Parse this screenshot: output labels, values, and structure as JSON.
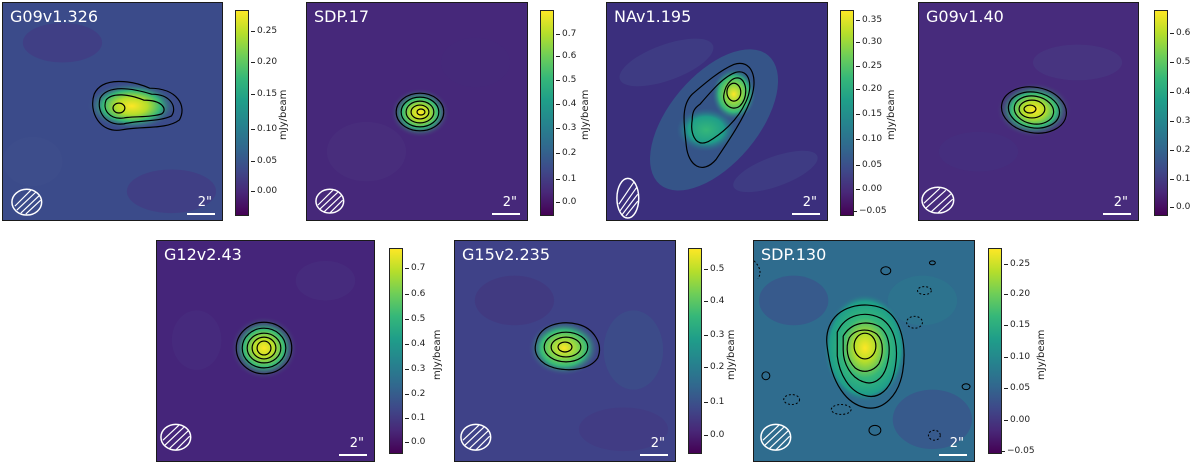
{
  "unit_label": "mJy/beam",
  "scale_bar_label": "2\"",
  "colormap": "viridis",
  "contour_color": "#000000",
  "panels": [
    {
      "name": "G09v1.326",
      "ticks": [
        "0.25",
        "0.20",
        "0.15",
        "0.10",
        "0.05",
        "0.00"
      ]
    },
    {
      "name": "SDP.17",
      "ticks": [
        "0.7",
        "0.6",
        "0.5",
        "0.4",
        "0.3",
        "0.2",
        "0.1",
        "0.0"
      ]
    },
    {
      "name": "NAv1.195",
      "ticks": [
        "0.35",
        "0.30",
        "0.25",
        "0.20",
        "0.15",
        "0.10",
        "0.05",
        "0.00",
        "−0.05"
      ]
    },
    {
      "name": "G09v1.40",
      "ticks": [
        "0.6",
        "0.5",
        "0.4",
        "0.3",
        "0.2",
        "0.1",
        "0.0"
      ]
    },
    {
      "name": "G12v2.43",
      "ticks": [
        "0.7",
        "0.6",
        "0.5",
        "0.4",
        "0.3",
        "0.2",
        "0.1",
        "0.0"
      ]
    },
    {
      "name": "G15v2.235",
      "ticks": [
        "0.5",
        "0.4",
        "0.3",
        "0.2",
        "0.1",
        "0.0"
      ]
    },
    {
      "name": "SDP.130",
      "ticks": [
        "0.25",
        "0.20",
        "0.15",
        "0.10",
        "0.05",
        "0.00",
        "−0.05"
      ]
    }
  ]
}
